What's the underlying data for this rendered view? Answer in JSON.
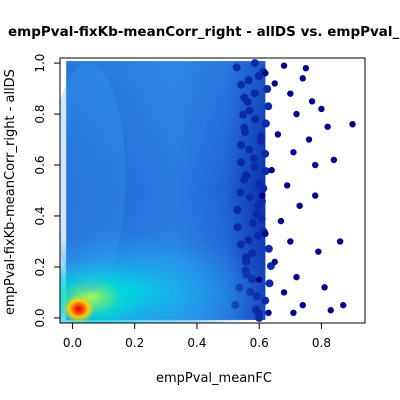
{
  "chart_data": {
    "type": "scatter",
    "title": "empPval-fixKb-meanCorr_right - allDS vs. empPval_meanFC",
    "xlabel": "empPval_meanFC",
    "ylabel": "empPval-fixKb-meanCorr_right - allDS",
    "xlim": [
      -0.04,
      0.94
    ],
    "ylim": [
      -0.02,
      1.02
    ],
    "x_ticks": [
      0.0,
      0.2,
      0.4,
      0.6,
      0.8
    ],
    "y_ticks": [
      0.0,
      0.2,
      0.4,
      0.6,
      0.8,
      1.0
    ],
    "x_tick_labels": [
      "0.0",
      "0.2",
      "0.4",
      "0.6",
      "0.8"
    ],
    "y_tick_labels": [
      "0.0",
      "0.2",
      "0.4",
      "0.6",
      "0.8",
      "1.0"
    ],
    "grid": false,
    "rendering": "smoothScatter density: dense cloud covering x 0 to about 0.6, y 0 to 1; density peak near (0.02, 0.03); sparse outlier points for x > 0.6",
    "density_colors": [
      "#00008b",
      "#1e5fd8",
      "#2f8fe6",
      "#00d5e6",
      "#7cff5a",
      "#ffff00",
      "#ff8c00",
      "#e60000"
    ],
    "outlier_color": "#00008b",
    "sample_outliers": [
      {
        "x": 0.62,
        "y": 0.96
      },
      {
        "x": 0.65,
        "y": 0.92
      },
      {
        "x": 0.68,
        "y": 0.99
      },
      {
        "x": 0.7,
        "y": 0.88
      },
      {
        "x": 0.72,
        "y": 0.8
      },
      {
        "x": 0.74,
        "y": 0.94
      },
      {
        "x": 0.66,
        "y": 0.72
      },
      {
        "x": 0.71,
        "y": 0.65
      },
      {
        "x": 0.64,
        "y": 0.58
      },
      {
        "x": 0.69,
        "y": 0.52
      },
      {
        "x": 0.73,
        "y": 0.44
      },
      {
        "x": 0.67,
        "y": 0.38
      },
      {
        "x": 0.7,
        "y": 0.3
      },
      {
        "x": 0.65,
        "y": 0.22
      },
      {
        "x": 0.72,
        "y": 0.16
      },
      {
        "x": 0.68,
        "y": 0.1
      },
      {
        "x": 0.74,
        "y": 0.05
      },
      {
        "x": 0.63,
        "y": 0.02
      },
      {
        "x": 0.76,
        "y": 0.7
      },
      {
        "x": 0.77,
        "y": 0.85
      },
      {
        "x": 0.78,
        "y": 0.48
      },
      {
        "x": 0.79,
        "y": 0.26
      },
      {
        "x": 0.8,
        "y": 0.82
      },
      {
        "x": 0.82,
        "y": 0.75
      },
      {
        "x": 0.81,
        "y": 0.12
      },
      {
        "x": 0.84,
        "y": 0.62
      },
      {
        "x": 0.86,
        "y": 0.3
      },
      {
        "x": 0.87,
        "y": 0.05
      },
      {
        "x": 0.9,
        "y": 0.76
      },
      {
        "x": 0.83,
        "y": 0.03
      },
      {
        "x": 0.61,
        "y": 0.48
      },
      {
        "x": 0.62,
        "y": 0.33
      },
      {
        "x": 0.6,
        "y": 0.15
      },
      {
        "x": 0.75,
        "y": 0.98
      },
      {
        "x": 0.78,
        "y": 0.6
      },
      {
        "x": 0.71,
        "y": 0.02
      }
    ]
  }
}
